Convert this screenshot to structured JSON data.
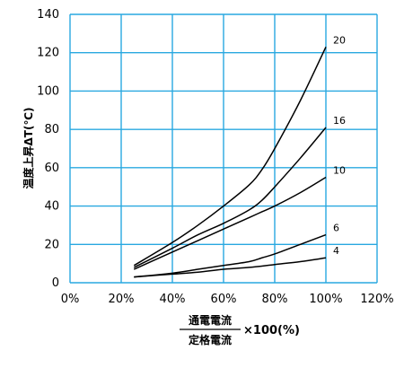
{
  "chart_data": {
    "type": "line",
    "y_axis_label": "温度上昇ΔT(℃)",
    "x_axis_label": {
      "numerator": "通電電流",
      "denominator": "定格電流",
      "suffix": "×100(%)"
    },
    "xlim": [
      0,
      120
    ],
    "ylim": [
      0,
      140
    ],
    "x_ticks": [
      0,
      20,
      40,
      60,
      80,
      100,
      120
    ],
    "x_tick_labels": [
      "0%",
      "20%",
      "40%",
      "60%",
      "80%",
      "100%",
      "120%"
    ],
    "y_ticks": [
      0,
      20,
      40,
      60,
      80,
      100,
      120,
      140
    ],
    "y_tick_labels": [
      "0",
      "20",
      "40",
      "60",
      "80",
      "100",
      "120",
      "140"
    ],
    "grid": true,
    "grid_color": "#29a8e0",
    "line_color": "#000000",
    "series": [
      {
        "name": "20",
        "x": [
          25,
          40,
          50,
          60,
          70,
          75,
          80,
          90,
          100
        ],
        "y": [
          9,
          21,
          30,
          40,
          51,
          59,
          70,
          95,
          123
        ]
      },
      {
        "name": "16",
        "x": [
          25,
          40,
          50,
          60,
          70,
          75,
          80,
          90,
          100
        ],
        "y": [
          8,
          18,
          25,
          31,
          38,
          43,
          50,
          65,
          81
        ]
      },
      {
        "name": "10",
        "x": [
          25,
          40,
          50,
          60,
          70,
          75,
          80,
          90,
          100
        ],
        "y": [
          7,
          16,
          22,
          28,
          34,
          37,
          40,
          47,
          55
        ]
      },
      {
        "name": "6",
        "x": [
          25,
          40,
          50,
          60,
          70,
          75,
          80,
          90,
          100
        ],
        "y": [
          3,
          5,
          7,
          9,
          11,
          13,
          15,
          20,
          25
        ]
      },
      {
        "name": "4",
        "x": [
          25,
          40,
          50,
          60,
          70,
          80,
          90,
          100
        ],
        "y": [
          3,
          4.5,
          5.5,
          7,
          8,
          9.5,
          11,
          13
        ]
      }
    ]
  }
}
